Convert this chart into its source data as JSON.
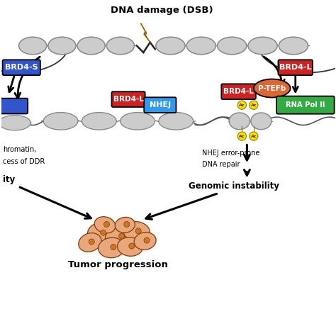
{
  "title": "DNA damage (DSB)",
  "bg_color": "#ffffff",
  "brd4s_label": "BRD4-S",
  "brd4l_label": "BRD4-L",
  "nhej_label": "NHEJ",
  "ptef_label": "P-TEFb",
  "rnapol_label": "RNA Pol II",
  "nhej_error_line1": "NHEJ error-prone",
  "nhej_error_line2": "DNA repair",
  "genomic_label": "Genomic instability",
  "tumor_label": "Tumor progression",
  "chromatin_line1": "hromatin,",
  "chromatin_line2": "cess of DDR",
  "instability_short": "ity",
  "brd4s_color": "#3355cc",
  "brd4l_color": "#cc2222",
  "nhej_color": "#3399ee",
  "ptef_color": "#dd6633",
  "rnapol_color": "#33aa44",
  "ac_color": "#ffdd00",
  "lightning_color": "#ffdd00",
  "arrow_color": "#111111",
  "disk_color": "#cccccc",
  "disk_edge": "#888888",
  "tumor_fill": "#e8a87c",
  "tumor_edge": "#8B4513",
  "tumor_nucleus": "#cc7722"
}
